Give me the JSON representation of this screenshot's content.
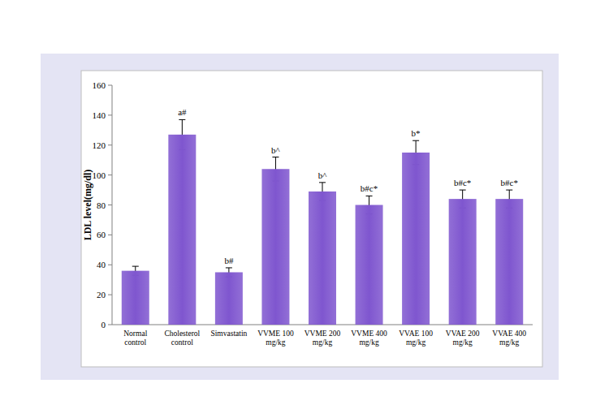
{
  "chart_data": {
    "type": "bar",
    "y_label": "LDL level(mg/dl)",
    "categories": [
      "Normal control",
      "Cholesterol control",
      "Simvastatin",
      "VVME 100 mg/kg",
      "VVME 200 mg/kg",
      "VVME 400 mg/kg",
      "VVAE 100 mg/kg",
      "VVAE 200 mg/kg",
      "VVAE 400 mg/kg"
    ],
    "values": [
      36,
      127,
      35,
      104,
      89,
      80,
      115,
      84,
      84
    ],
    "errors": [
      3,
      10,
      3,
      8,
      6,
      6,
      8,
      6,
      6
    ],
    "annotations": [
      null,
      "a#",
      "b#",
      "b^",
      "b^",
      "b#c*",
      "b*",
      "b#c*",
      "b#c*"
    ],
    "color": "#7f56cf",
    "ylim": [
      0,
      160
    ],
    "yticks": [
      0,
      20,
      40,
      60,
      80,
      100,
      120,
      140,
      160
    ],
    "grid": false
  }
}
